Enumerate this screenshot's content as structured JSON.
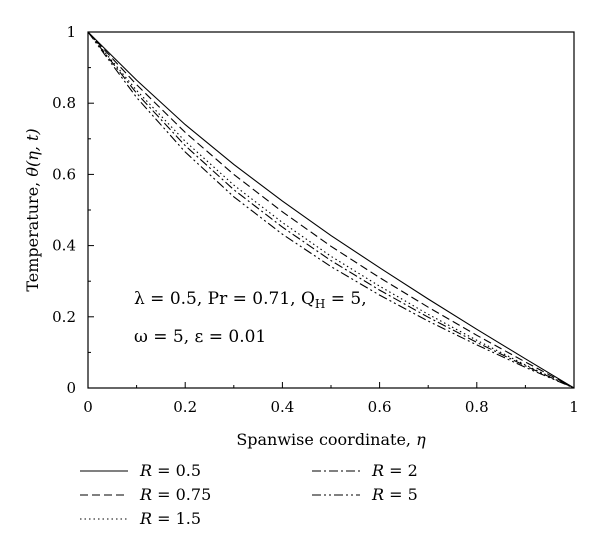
{
  "chart_data": {
    "type": "line",
    "xlabel_text": "Spanwise coordinate, ",
    "xlabel_symbol": "η",
    "ylabel_text": "Temperature, ",
    "ylabel_symbol": "θ(η, t)",
    "xlim": [
      0,
      1
    ],
    "ylim": [
      0,
      1
    ],
    "xticks": [
      0,
      0.2,
      0.4,
      0.6,
      0.8,
      1
    ],
    "xtick_labels": [
      "0",
      "0.2",
      "0.4",
      "0.6",
      "0.8",
      "1"
    ],
    "yticks": [
      0,
      0.2,
      0.4,
      0.6,
      0.8,
      1
    ],
    "ytick_labels": [
      "0",
      "0.2",
      "0.4",
      "0.6",
      "0.8",
      "1"
    ],
    "grid": false,
    "legend_position": "below the plot, two columns",
    "annotation_line1": "λ = 0.5, Pr = 0.71, Q",
    "annotation_line1_sub": "H",
    "annotation_line1_end": " = 5,",
    "annotation_line2": "ω = 5, ε = 0.01",
    "x": [
      0,
      0.1,
      0.2,
      0.3,
      0.4,
      0.5,
      0.6,
      0.7,
      0.8,
      0.9,
      1.0
    ],
    "series": [
      {
        "name": "R = 0.5",
        "dash": "solid",
        "values": [
          1.0,
          0.865,
          0.74,
          0.628,
          0.525,
          0.428,
          0.338,
          0.25,
          0.165,
          0.082,
          0.0
        ]
      },
      {
        "name": "R = 0.75",
        "dash": "dashed",
        "values": [
          1.0,
          0.852,
          0.718,
          0.6,
          0.495,
          0.398,
          0.31,
          0.227,
          0.148,
          0.073,
          0.0
        ]
      },
      {
        "name": "R = 1.5",
        "dash": "dotted",
        "values": [
          1.0,
          0.836,
          0.693,
          0.57,
          0.465,
          0.37,
          0.286,
          0.207,
          0.134,
          0.065,
          0.0
        ]
      },
      {
        "name": "R = 2",
        "dash": "dashdot",
        "values": [
          1.0,
          0.828,
          0.681,
          0.557,
          0.452,
          0.358,
          0.275,
          0.199,
          0.128,
          0.062,
          0.0
        ]
      },
      {
        "name": "R = 5",
        "dash": "dashdotdot",
        "values": [
          1.0,
          0.816,
          0.663,
          0.537,
          0.432,
          0.341,
          0.261,
          0.188,
          0.121,
          0.058,
          0.0
        ]
      }
    ],
    "legend": {
      "col1": [
        {
          "prefix": "R",
          "label": " = 0.5"
        },
        {
          "prefix": "R",
          "label": " = 0.75"
        },
        {
          "prefix": "R",
          "label": " = 1.5"
        }
      ],
      "col2": [
        {
          "prefix": "R",
          "label": " = 2"
        },
        {
          "prefix": "R",
          "label": " = 5"
        }
      ]
    }
  }
}
